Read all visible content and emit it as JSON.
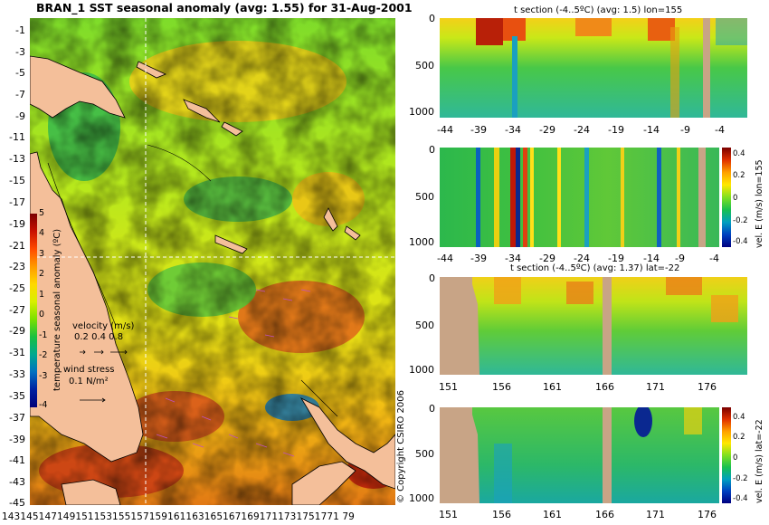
{
  "header": {
    "title": "BRAN_1  SST seasonal anomaly  (avg: 1.55)  for 31-Aug-2001"
  },
  "map": {
    "lat_ticks": [
      "-1",
      "-3",
      "-5",
      "-7",
      "-9",
      "-11",
      "-13",
      "-15",
      "-17",
      "-19",
      "-21",
      "-23",
      "-25",
      "-27",
      "-29",
      "-31",
      "-33",
      "-35",
      "-37",
      "-39",
      "-41",
      "-43",
      "-45"
    ],
    "lon_ticks_text": "1431451471491511531551571591611631651671691711731751771 79",
    "colorbar": {
      "ticks": [
        "5",
        "4",
        "3",
        "2",
        "1",
        "0",
        "-1",
        "-2",
        "-3",
        "-4"
      ],
      "label": "temperature seasonal anomaly (ºC)",
      "colors": [
        "#7a0000",
        "#c81000",
        "#ff4a00",
        "#ff9a00",
        "#ffd800",
        "#d8f000",
        "#7ce000",
        "#18c040",
        "#00a890",
        "#0070c0",
        "#0020a0",
        "#000078"
      ]
    },
    "velocity_legend": {
      "label": "velocity (m/s)",
      "values": "0.2 0.4 0.8"
    },
    "wind_legend": {
      "label": "wind stress",
      "value": "0.1 N/m²"
    },
    "crosshair": {
      "lon": "155",
      "lat": "-22"
    }
  },
  "panels": [
    {
      "title": "t section (-4..5ºC) (avg: 1.5) lon=155",
      "x_ticks": [
        "-44",
        "-39",
        "-34",
        "-29",
        "-24",
        "-19",
        "-14",
        "-9",
        "-4"
      ],
      "y_ticks": [
        "0",
        "500",
        "1000"
      ]
    },
    {
      "title": "",
      "x_ticks": [
        "-44",
        "-39",
        "-34",
        "-29",
        "-24",
        "-19",
        "-14",
        "-9",
        "-4"
      ],
      "y_ticks": [
        "0",
        "500",
        "1000"
      ],
      "cb_label": "vel. E (m/s) lon=155",
      "cb_ticks": [
        "0.4",
        "0.2",
        "0",
        "-0.2",
        "-0.4"
      ]
    },
    {
      "title": "t section (-4..5ºC) (avg: 1.37) lat=-22",
      "x_ticks": [
        "151",
        "156",
        "161",
        "166",
        "171",
        "176"
      ],
      "y_ticks": [
        "0",
        "500",
        "1000"
      ]
    },
    {
      "title": "",
      "x_ticks": [
        "151",
        "156",
        "161",
        "166",
        "171",
        "176"
      ],
      "y_ticks": [
        "0",
        "500",
        "1000"
      ],
      "cb_label": "vel. E (m/s) lat=-22",
      "cb_ticks": [
        "0.4",
        "0.2",
        "0",
        "-0.2",
        "-0.4"
      ]
    }
  ],
  "copyright": "© Copyright CSIRO 2006"
}
